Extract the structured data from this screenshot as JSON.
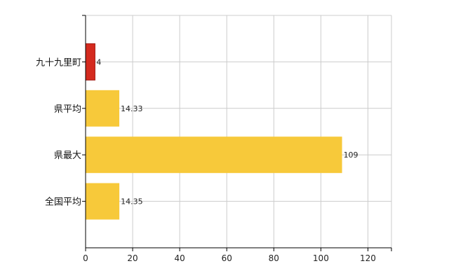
{
  "chart_data": {
    "type": "bar",
    "orientation": "horizontal",
    "title": "",
    "xlabel": "",
    "ylabel": "",
    "categories": [
      "九十九里町",
      "県平均",
      "県最大",
      "全国平均"
    ],
    "values": [
      4,
      14.33,
      109,
      14.35
    ],
    "value_labels": [
      "4",
      "14.33",
      "109",
      "14.35"
    ],
    "xlim": [
      0,
      130
    ],
    "xticks": [
      0,
      20,
      40,
      60,
      80,
      100,
      120
    ],
    "grid": true,
    "legend": "none",
    "colors": {
      "highlight": "#d42a1e",
      "highlight_edge": "#a31810",
      "default": "#f7c93a",
      "grid": "#cccccc",
      "axis": "#000000"
    },
    "highlight_index": 0
  }
}
